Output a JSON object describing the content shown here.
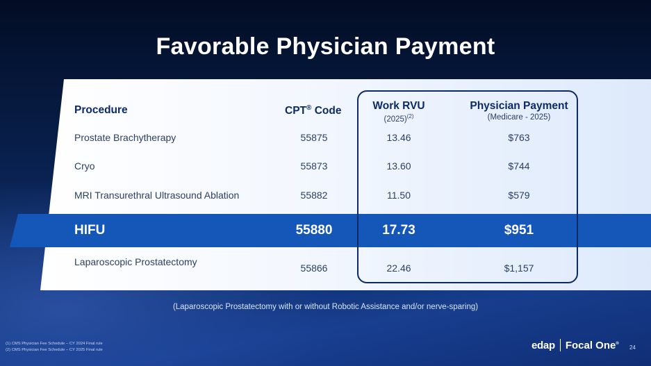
{
  "slide": {
    "title": "Favorable Physician Payment",
    "page_number": "24"
  },
  "table": {
    "headers": {
      "procedure": "Procedure",
      "cpt_main": "CPT",
      "cpt_reg": "®",
      "cpt_code": "Code",
      "rvu_main": "Work RVU",
      "rvu_sub": "(2025)",
      "rvu_sup": "(2)",
      "pay_main": "Physician Payment",
      "pay_sub": "(Medicare - 2025)"
    },
    "rows": [
      {
        "procedure": "Prostate Brachytherapy",
        "cpt": "55875",
        "rvu": "13.46",
        "payment": "$763"
      },
      {
        "procedure": "Cryo",
        "cpt": "55873",
        "rvu": "13.60",
        "payment": "$744"
      },
      {
        "procedure": "MRI Transurethral Ultrasound Ablation",
        "cpt": "55882",
        "rvu": "11.50",
        "payment": "$579"
      },
      {
        "procedure": "HIFU",
        "cpt": "55880",
        "rvu": "17.73",
        "payment": "$951"
      },
      {
        "procedure": "Laparoscopic Prostatectomy",
        "cpt": "55866",
        "rvu": "22.46",
        "payment": "$1,157"
      }
    ]
  },
  "note": "(Laparoscopic Prostatectomy with or without Robotic Assistance and/or nerve-sparing)",
  "footnotes": [
    "(1) CMS Physician Fee Schedule – CY 2024 Final rule",
    "(2) CMS Physician Fee Schedule – CY 2025 Final rule"
  ],
  "logo": {
    "edap": "edap",
    "focal": "Focal One",
    "reg": "®"
  },
  "colors": {
    "navy": "#0b2a66",
    "hifu_band": "#1557b9",
    "background": "#0a1f4e"
  }
}
